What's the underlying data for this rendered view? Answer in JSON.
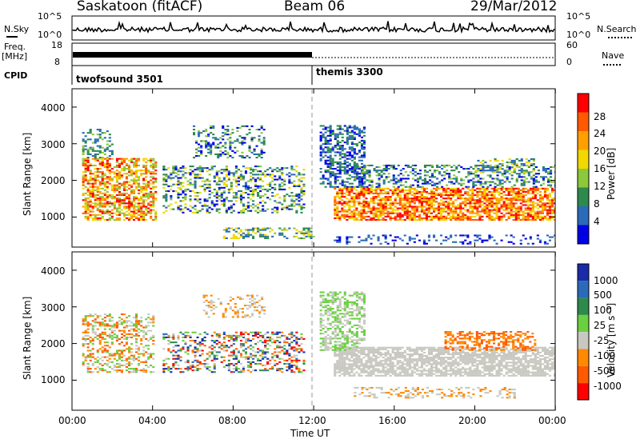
{
  "header": {
    "station": "Saskatoon (fitACF)",
    "beam": "Beam 06",
    "date": "29/Mar/2012"
  },
  "noise_panel": {
    "left_label": "N.Sky",
    "right_label": "N.Search",
    "left_ticks": [
      "10^5",
      "10^0"
    ],
    "right_ticks": [
      "10^5",
      "10^0"
    ]
  },
  "freq_panel": {
    "left_label_1": "Freq.",
    "left_label_2": "[MHz]",
    "left_ticks": [
      "18",
      "8"
    ],
    "right_ticks": [
      "60",
      "0"
    ],
    "right_label": "Nave"
  },
  "cpid": {
    "label": "CPID",
    "modes": [
      {
        "name": "twofsound 3501",
        "start_ut": "00:00"
      },
      {
        "name": "themis 3300",
        "start_ut": "12:00"
      }
    ]
  },
  "chart_data": [
    {
      "type": "heatmap",
      "name": "power-panel",
      "ylabel": "Slant Range [km]",
      "y_ticks": [
        "4000",
        "3000",
        "2000",
        "1000"
      ],
      "ylim": [
        180,
        4500
      ],
      "x_ticks": [
        "00:00",
        "04:00",
        "08:00",
        "12:00",
        "16:00",
        "20:00",
        "00:00"
      ],
      "colorbar_label": "Power [dB]",
      "colorbar_ticks": [
        "28",
        "24",
        "20",
        "16",
        "12",
        "8",
        "4"
      ],
      "colorbar_colors": [
        "#ff0000",
        "#ff5a00",
        "#ffa000",
        "#f0d800",
        "#8cc83c",
        "#2d8a4c",
        "#2a6ab8",
        "#0000e6"
      ]
    },
    {
      "type": "heatmap",
      "name": "velocity-panel",
      "ylabel": "Slant Range [km]",
      "y_ticks": [
        "4000",
        "3000",
        "2000",
        "1000"
      ],
      "ylim": [
        180,
        4500
      ],
      "x_ticks": [
        "00:00",
        "04:00",
        "08:00",
        "12:00",
        "16:00",
        "20:00",
        "00:00"
      ],
      "xlabel": "Time UT",
      "colorbar_label": "Velocity [m s⁻¹]",
      "colorbar_ticks": [
        "1000",
        "500",
        "100",
        "25",
        "-25",
        "-100",
        "-500",
        "-1000"
      ],
      "colorbar_colors": [
        "#1a2aa8",
        "#2a6ab8",
        "#2d8a4c",
        "#6ad040",
        "#c8c8c0",
        "#ff8a00",
        "#ff5a00",
        "#ff0000"
      ]
    }
  ]
}
